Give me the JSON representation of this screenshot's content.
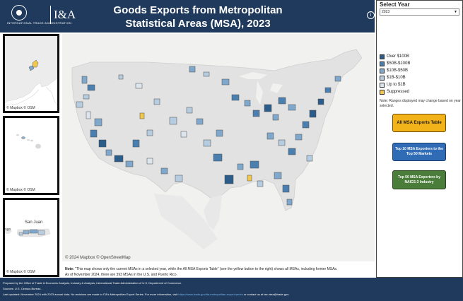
{
  "header": {
    "logo_text": "INTERNATIONAL TRADE ADMINISTRATION",
    "brand": "I&A",
    "title": "Goods Exports from Metropolitan Statistical Areas (MSA), 2023",
    "info_icon": "i"
  },
  "insets": [
    {
      "name": "alaska",
      "credit": "© Mapbox  © OSM"
    },
    {
      "name": "hawaii",
      "credit": "© Mapbox  © OSM"
    },
    {
      "name": "puerto-rico",
      "credit": "© Mapbox  © OSM",
      "label": "San Juan",
      "side_label": "ngo"
    }
  ],
  "map": {
    "credit": "© 2024 Mapbox  © OpenStreetMap"
  },
  "note": {
    "prefix": "Note:",
    "line1": "\"This map shows only the current MSAs in a selected year, while the All MSA Exports Table\" (see the yellow button to the right) shows all MSAs, including former MSAs.",
    "line2": "As of November 2024, there are 393 MSAs in the U.S. and Puerto Rico."
  },
  "sidebar": {
    "select_label": "Select Year",
    "selected_year": "2023",
    "legend": [
      {
        "label": "Over $100B",
        "color": "#2b5c8a"
      },
      {
        "label": "$50B-$100B",
        "color": "#4b7fb0"
      },
      {
        "label": "$10B-$50B",
        "color": "#7fa8cc"
      },
      {
        "label": "$1B-$10B",
        "color": "#b6cce0"
      },
      {
        "label": "Up to $1B",
        "color": "#dde6ef"
      },
      {
        "label": "Suppressed",
        "color": "#f2c84b"
      }
    ],
    "legend_note": "Note: Ranges displayed may change based on year selected.",
    "buttons": {
      "all_msa": "All MSA Exports Table",
      "top10": "Top 10 MSA Exporters to the Top 50 Markets",
      "top50": "Top 50 MSA Exporters by NAICS-3 Industry"
    }
  },
  "footer": {
    "line1": "Prepared by the Office of Trade & Economic Analysis, Industry & Analysis, International Trade Administration of U.S. Department of Commerce.",
    "line2": "Sources: U.S. Census Bureau.",
    "line3_pre": "Last updated: November 2024 with 2023  annual data. No revisions are made to ITA's Metropolitan Export Series. For more information, visit",
    "link": "https://www.trade.gov/ita-metropolitan-export-series",
    "line3_post": "or contact us at tse.otea@trade.gov."
  }
}
